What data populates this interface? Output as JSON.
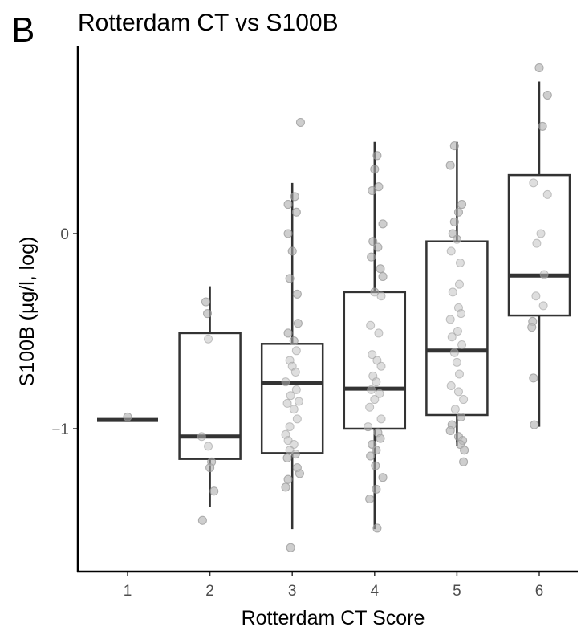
{
  "panel_label": "B",
  "chart_data": {
    "type": "boxplot",
    "title": "Rotterdam CT vs S100B",
    "xlabel": "Rotterdam CT Score",
    "ylabel": "S100B (µg/l, log)",
    "categories": [
      "1",
      "2",
      "3",
      "4",
      "5",
      "6"
    ],
    "y_ticks": [
      {
        "value": 0,
        "label": "0"
      },
      {
        "value": -1,
        "label": "−1"
      }
    ],
    "ylim": [
      -1.72,
      0.95
    ],
    "grid": false,
    "legend": "none",
    "boxes": [
      {
        "category": "1",
        "q1": -0.955,
        "median": -0.955,
        "q3": -0.955,
        "whisker_low": -0.955,
        "whisker_high": -0.955
      },
      {
        "category": "2",
        "q1": -1.155,
        "median": -1.04,
        "q3": -0.51,
        "whisker_low": -1.4,
        "whisker_high": -0.27
      },
      {
        "category": "3",
        "q1": -1.125,
        "median": -0.765,
        "q3": -0.565,
        "whisker_low": -1.515,
        "whisker_high": 0.26
      },
      {
        "category": "4",
        "q1": -1.0,
        "median": -0.795,
        "q3": -0.3,
        "whisker_low": -1.515,
        "whisker_high": 0.47
      },
      {
        "category": "5",
        "q1": -0.93,
        "median": -0.6,
        "q3": -0.04,
        "whisker_low": -1.09,
        "whisker_high": 0.47
      },
      {
        "category": "6",
        "q1": -0.42,
        "median": -0.215,
        "q3": 0.3,
        "whisker_low": -0.99,
        "whisker_high": 0.78
      }
    ],
    "points": [
      {
        "category": "1",
        "x_offset": 0.0,
        "y": -0.94
      },
      {
        "category": "2",
        "x_offset": -0.05,
        "y": -0.35
      },
      {
        "category": "2",
        "x_offset": -0.03,
        "y": -0.41
      },
      {
        "category": "2",
        "x_offset": -0.02,
        "y": -0.54
      },
      {
        "category": "2",
        "x_offset": -0.1,
        "y": -1.04
      },
      {
        "category": "2",
        "x_offset": -0.02,
        "y": -1.09
      },
      {
        "category": "2",
        "x_offset": 0.02,
        "y": -1.17
      },
      {
        "category": "2",
        "x_offset": 0.0,
        "y": -1.2
      },
      {
        "category": "2",
        "x_offset": 0.05,
        "y": -1.32
      },
      {
        "category": "2",
        "x_offset": -0.09,
        "y": -1.47
      },
      {
        "category": "3",
        "x_offset": 0.1,
        "y": 0.57
      },
      {
        "category": "3",
        "x_offset": 0.03,
        "y": 0.19
      },
      {
        "category": "3",
        "x_offset": -0.05,
        "y": 0.15
      },
      {
        "category": "3",
        "x_offset": 0.05,
        "y": 0.11
      },
      {
        "category": "3",
        "x_offset": -0.05,
        "y": 0.0
      },
      {
        "category": "3",
        "x_offset": 0.0,
        "y": -0.09
      },
      {
        "category": "3",
        "x_offset": -0.03,
        "y": -0.23
      },
      {
        "category": "3",
        "x_offset": 0.06,
        "y": -0.31
      },
      {
        "category": "3",
        "x_offset": 0.07,
        "y": -0.46
      },
      {
        "category": "3",
        "x_offset": -0.05,
        "y": -0.51
      },
      {
        "category": "3",
        "x_offset": 0.02,
        "y": -0.55
      },
      {
        "category": "3",
        "x_offset": 0.05,
        "y": -0.6
      },
      {
        "category": "3",
        "x_offset": -0.03,
        "y": -0.65
      },
      {
        "category": "3",
        "x_offset": 0.0,
        "y": -0.68
      },
      {
        "category": "3",
        "x_offset": 0.04,
        "y": -0.71
      },
      {
        "category": "3",
        "x_offset": -0.08,
        "y": -0.76
      },
      {
        "category": "3",
        "x_offset": 0.05,
        "y": -0.8
      },
      {
        "category": "3",
        "x_offset": -0.02,
        "y": -0.83
      },
      {
        "category": "3",
        "x_offset": 0.08,
        "y": -0.86
      },
      {
        "category": "3",
        "x_offset": -0.06,
        "y": -0.87
      },
      {
        "category": "3",
        "x_offset": 0.02,
        "y": -0.9
      },
      {
        "category": "3",
        "x_offset": 0.06,
        "y": -0.95
      },
      {
        "category": "3",
        "x_offset": -0.03,
        "y": -0.99
      },
      {
        "category": "3",
        "x_offset": -0.08,
        "y": -1.03
      },
      {
        "category": "3",
        "x_offset": -0.05,
        "y": -1.06
      },
      {
        "category": "3",
        "x_offset": 0.02,
        "y": -1.08
      },
      {
        "category": "3",
        "x_offset": -0.03,
        "y": -1.11
      },
      {
        "category": "3",
        "x_offset": 0.04,
        "y": -1.13
      },
      {
        "category": "3",
        "x_offset": -0.06,
        "y": -1.15
      },
      {
        "category": "3",
        "x_offset": 0.06,
        "y": -1.2
      },
      {
        "category": "3",
        "x_offset": 0.09,
        "y": -1.23
      },
      {
        "category": "3",
        "x_offset": -0.05,
        "y": -1.26
      },
      {
        "category": "3",
        "x_offset": -0.08,
        "y": -1.3
      },
      {
        "category": "3",
        "x_offset": -0.02,
        "y": -1.61
      },
      {
        "category": "4",
        "x_offset": 0.03,
        "y": 0.4
      },
      {
        "category": "4",
        "x_offset": 0.0,
        "y": 0.33
      },
      {
        "category": "4",
        "x_offset": 0.05,
        "y": 0.24
      },
      {
        "category": "4",
        "x_offset": -0.03,
        "y": 0.22
      },
      {
        "category": "4",
        "x_offset": 0.1,
        "y": 0.05
      },
      {
        "category": "4",
        "x_offset": -0.02,
        "y": -0.04
      },
      {
        "category": "4",
        "x_offset": 0.04,
        "y": -0.07
      },
      {
        "category": "4",
        "x_offset": -0.04,
        "y": -0.12
      },
      {
        "category": "4",
        "x_offset": 0.07,
        "y": -0.18
      },
      {
        "category": "4",
        "x_offset": 0.1,
        "y": -0.22
      },
      {
        "category": "4",
        "x_offset": 0.0,
        "y": -0.3
      },
      {
        "category": "4",
        "x_offset": 0.08,
        "y": -0.32
      },
      {
        "category": "4",
        "x_offset": -0.05,
        "y": -0.47
      },
      {
        "category": "4",
        "x_offset": 0.05,
        "y": -0.51
      },
      {
        "category": "4",
        "x_offset": -0.03,
        "y": -0.62
      },
      {
        "category": "4",
        "x_offset": 0.03,
        "y": -0.65
      },
      {
        "category": "4",
        "x_offset": 0.08,
        "y": -0.68
      },
      {
        "category": "4",
        "x_offset": -0.02,
        "y": -0.73
      },
      {
        "category": "4",
        "x_offset": 0.02,
        "y": -0.76
      },
      {
        "category": "4",
        "x_offset": -0.04,
        "y": -0.8
      },
      {
        "category": "4",
        "x_offset": 0.06,
        "y": -0.82
      },
      {
        "category": "4",
        "x_offset": 0.0,
        "y": -0.85
      },
      {
        "category": "4",
        "x_offset": -0.06,
        "y": -0.89
      },
      {
        "category": "4",
        "x_offset": 0.08,
        "y": -0.95
      },
      {
        "category": "4",
        "x_offset": -0.08,
        "y": -0.99
      },
      {
        "category": "4",
        "x_offset": 0.04,
        "y": -1.02
      },
      {
        "category": "4",
        "x_offset": 0.07,
        "y": -1.05
      },
      {
        "category": "4",
        "x_offset": -0.03,
        "y": -1.08
      },
      {
        "category": "4",
        "x_offset": 0.02,
        "y": -1.11
      },
      {
        "category": "4",
        "x_offset": -0.05,
        "y": -1.14
      },
      {
        "category": "4",
        "x_offset": 0.01,
        "y": -1.19
      },
      {
        "category": "4",
        "x_offset": 0.1,
        "y": -1.25
      },
      {
        "category": "4",
        "x_offset": 0.02,
        "y": -1.31
      },
      {
        "category": "4",
        "x_offset": -0.06,
        "y": -1.36
      },
      {
        "category": "4",
        "x_offset": 0.03,
        "y": -1.51
      },
      {
        "category": "5",
        "x_offset": -0.03,
        "y": 0.45
      },
      {
        "category": "5",
        "x_offset": -0.08,
        "y": 0.35
      },
      {
        "category": "5",
        "x_offset": 0.06,
        "y": 0.15
      },
      {
        "category": "5",
        "x_offset": 0.02,
        "y": 0.11
      },
      {
        "category": "5",
        "x_offset": -0.03,
        "y": 0.06
      },
      {
        "category": "5",
        "x_offset": -0.05,
        "y": 0.0
      },
      {
        "category": "5",
        "x_offset": 0.0,
        "y": -0.03
      },
      {
        "category": "5",
        "x_offset": -0.07,
        "y": -0.09
      },
      {
        "category": "5",
        "x_offset": 0.04,
        "y": -0.15
      },
      {
        "category": "5",
        "x_offset": 0.03,
        "y": -0.26
      },
      {
        "category": "5",
        "x_offset": -0.05,
        "y": -0.3
      },
      {
        "category": "5",
        "x_offset": 0.02,
        "y": -0.38
      },
      {
        "category": "5",
        "x_offset": 0.05,
        "y": -0.41
      },
      {
        "category": "5",
        "x_offset": -0.08,
        "y": -0.44
      },
      {
        "category": "5",
        "x_offset": 0.01,
        "y": -0.5
      },
      {
        "category": "5",
        "x_offset": -0.06,
        "y": -0.53
      },
      {
        "category": "5",
        "x_offset": 0.06,
        "y": -0.57
      },
      {
        "category": "5",
        "x_offset": -0.03,
        "y": -0.61
      },
      {
        "category": "5",
        "x_offset": 0.0,
        "y": -0.66
      },
      {
        "category": "5",
        "x_offset": 0.03,
        "y": -0.72
      },
      {
        "category": "5",
        "x_offset": -0.07,
        "y": -0.78
      },
      {
        "category": "5",
        "x_offset": 0.02,
        "y": -0.81
      },
      {
        "category": "5",
        "x_offset": 0.08,
        "y": -0.85
      },
      {
        "category": "5",
        "x_offset": -0.02,
        "y": -0.9
      },
      {
        "category": "5",
        "x_offset": 0.05,
        "y": -0.94
      },
      {
        "category": "5",
        "x_offset": -0.06,
        "y": -0.98
      },
      {
        "category": "5",
        "x_offset": -0.08,
        "y": -1.01
      },
      {
        "category": "5",
        "x_offset": 0.02,
        "y": -1.04
      },
      {
        "category": "5",
        "x_offset": 0.07,
        "y": -1.06
      },
      {
        "category": "5",
        "x_offset": 0.04,
        "y": -1.08
      },
      {
        "category": "5",
        "x_offset": 0.09,
        "y": -1.11
      },
      {
        "category": "5",
        "x_offset": 0.08,
        "y": -1.17
      },
      {
        "category": "6",
        "x_offset": 0.0,
        "y": 0.85
      },
      {
        "category": "6",
        "x_offset": 0.1,
        "y": 0.71
      },
      {
        "category": "6",
        "x_offset": 0.04,
        "y": 0.55
      },
      {
        "category": "6",
        "x_offset": -0.07,
        "y": 0.26
      },
      {
        "category": "6",
        "x_offset": 0.1,
        "y": 0.2
      },
      {
        "category": "6",
        "x_offset": 0.02,
        "y": 0.0
      },
      {
        "category": "6",
        "x_offset": -0.03,
        "y": -0.05
      },
      {
        "category": "6",
        "x_offset": 0.06,
        "y": -0.21
      },
      {
        "category": "6",
        "x_offset": -0.04,
        "y": -0.32
      },
      {
        "category": "6",
        "x_offset": 0.05,
        "y": -0.37
      },
      {
        "category": "6",
        "x_offset": -0.08,
        "y": -0.45
      },
      {
        "category": "6",
        "x_offset": -0.09,
        "y": -0.48
      },
      {
        "category": "6",
        "x_offset": -0.07,
        "y": -0.74
      },
      {
        "category": "6",
        "x_offset": -0.06,
        "y": -0.98
      }
    ]
  }
}
